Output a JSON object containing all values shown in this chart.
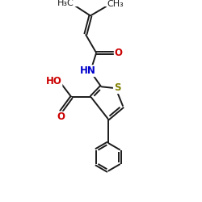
{
  "bg_color": "#ffffff",
  "bond_color": "#1a1a1a",
  "S_color": "#808000",
  "N_color": "#0000cc",
  "O_color": "#cc0000",
  "figsize": [
    2.5,
    2.5
  ],
  "dpi": 100,
  "lw": 1.4,
  "xlim": [
    0,
    10
  ],
  "ylim": [
    0,
    10
  ]
}
